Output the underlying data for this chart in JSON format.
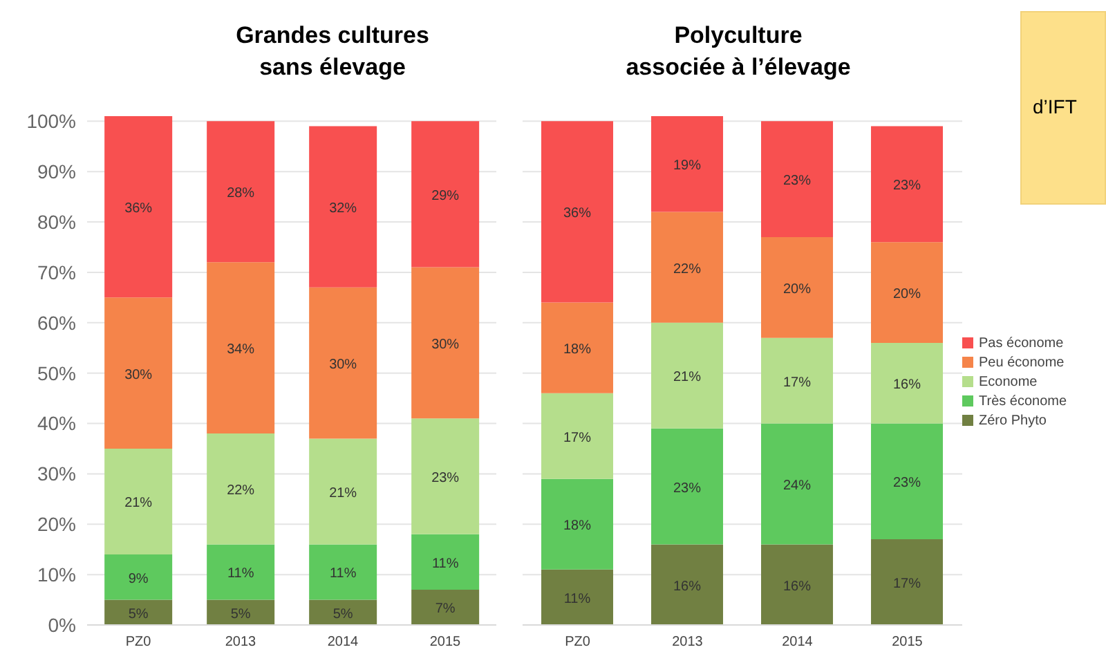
{
  "chart_data": [
    {
      "type": "bar",
      "title": "Grandes cultures\nsans élevage",
      "stacked": true,
      "categories": [
        "PZ0",
        "2013",
        "2014",
        "2015"
      ],
      "ylim": [
        0,
        101
      ],
      "yticks": [
        {
          "value": 0,
          "label": "0%"
        },
        {
          "value": 10,
          "label": "10%"
        },
        {
          "value": 20,
          "label": "20%"
        },
        {
          "value": 30,
          "label": "30%"
        },
        {
          "value": 40,
          "label": "40%"
        },
        {
          "value": 50,
          "label": "50%"
        },
        {
          "value": 60,
          "label": "60%"
        },
        {
          "value": 70,
          "label": "70%"
        },
        {
          "value": 80,
          "label": "80%"
        },
        {
          "value": 90,
          "label": "90%"
        },
        {
          "value": 100,
          "label": "100%"
        }
      ],
      "grid": "y",
      "series": [
        {
          "color": "#718042",
          "values": [
            5,
            5,
            5,
            7
          ],
          "value_labels": [
            "5%",
            "5%",
            "5%",
            "7%"
          ]
        },
        {
          "color": "#5ec95e",
          "values": [
            9,
            11,
            11,
            11
          ],
          "value_labels": [
            "9%",
            "11%",
            "11%",
            "11%"
          ]
        },
        {
          "color": "#b5de8c",
          "values": [
            21,
            22,
            21,
            23
          ],
          "value_labels": [
            "21%",
            "22%",
            "21%",
            "23%"
          ]
        },
        {
          "color": "#f5844a",
          "values": [
            30,
            34,
            30,
            30
          ],
          "value_labels": [
            "30%",
            "34%",
            "30%",
            "30%"
          ]
        },
        {
          "color": "#f85050",
          "values": [
            36,
            28,
            32,
            29
          ],
          "value_labels": [
            "36%",
            "28%",
            "32%",
            "29%"
          ]
        }
      ]
    },
    {
      "type": "bar",
      "title": "Polyculture\nassociée à l’élevage",
      "stacked": true,
      "categories": [
        "PZ0",
        "2013",
        "2014",
        "2015"
      ],
      "ylim": [
        0,
        101
      ],
      "yticks": [
        0,
        10,
        20,
        30,
        40,
        50,
        60,
        70,
        80,
        90,
        100
      ],
      "tick_labels": "x",
      "grid": "y",
      "legend": "right",
      "annotations": [
        "d’IFT"
      ],
      "series": [
        {
          "name": "Zéro Phyto",
          "color": "#718042",
          "values": [
            11,
            16,
            16,
            17
          ],
          "value_labels": [
            "11%",
            "16%",
            "16%",
            "17%"
          ]
        },
        {
          "name": "Très économe",
          "color": "#5ec95e",
          "values": [
            18,
            23,
            24,
            23
          ],
          "value_labels": [
            "18%",
            "23%",
            "24%",
            "23%"
          ]
        },
        {
          "name": "Econome",
          "color": "#b5de8c",
          "values": [
            17,
            21,
            17,
            16
          ],
          "value_labels": [
            "17%",
            "21%",
            "17%",
            "16%"
          ]
        },
        {
          "name": "Peu économe",
          "color": "#f5844a",
          "values": [
            18,
            22,
            20,
            20
          ],
          "value_labels": [
            "18%",
            "22%",
            "20%",
            "20%"
          ]
        },
        {
          "name": "Pas économe",
          "color": "#f85050",
          "values": [
            36,
            19,
            23,
            23
          ],
          "value_labels": [
            "36%",
            "19%",
            "23%",
            "23%"
          ]
        }
      ]
    }
  ]
}
